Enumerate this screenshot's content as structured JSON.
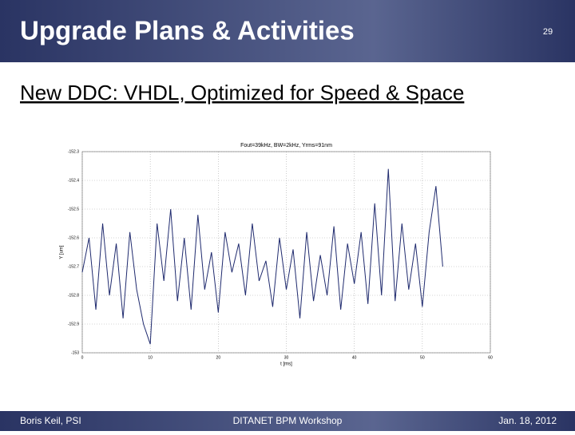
{
  "header": {
    "title": "Upgrade Plans & Activities",
    "page": "29"
  },
  "subtitle": "New DDC: VHDL, Optimized for Speed & Space",
  "chart_data": {
    "type": "line",
    "title": "Fout=39kHz, BW=2kHz, Yrms=91nm",
    "xlabel": "t [ms]",
    "ylabel": "Y [um]",
    "x": [
      0,
      1,
      2,
      3,
      4,
      5,
      6,
      7,
      8,
      9,
      10,
      11,
      12,
      13,
      14,
      15,
      16,
      17,
      18,
      19,
      20,
      21,
      22,
      23,
      24,
      25,
      26,
      27,
      28,
      29,
      30,
      31,
      32,
      33,
      34,
      35,
      36,
      37,
      38,
      39,
      40,
      41,
      42,
      43,
      44,
      45,
      46,
      47,
      48,
      49,
      50,
      51,
      52,
      53
    ],
    "series": [
      {
        "color": "#1f2a6e",
        "values": [
          -152.72,
          -152.6,
          -152.85,
          -152.55,
          -152.8,
          -152.62,
          -152.88,
          -152.58,
          -152.78,
          -152.9,
          -152.97,
          -152.55,
          -152.75,
          -152.5,
          -152.82,
          -152.6,
          -152.85,
          -152.52,
          -152.78,
          -152.65,
          -152.86,
          -152.58,
          -152.72,
          -152.62,
          -152.8,
          -152.55,
          -152.75,
          -152.68,
          -152.84,
          -152.6,
          -152.78,
          -152.64,
          -152.88,
          -152.58,
          -152.82,
          -152.66,
          -152.8,
          -152.56,
          -152.85,
          -152.62,
          -152.76,
          -152.58,
          -152.83,
          -152.48,
          -152.8,
          -152.36,
          -152.82,
          -152.55,
          -152.78,
          -152.62,
          -152.84,
          -152.58,
          -152.42,
          -152.7
        ]
      }
    ],
    "xlim": [
      0,
      60
    ],
    "ylim": [
      -153,
      -152.3
    ],
    "xticks": [
      0,
      10,
      20,
      30,
      40,
      50,
      60
    ],
    "yticks": [
      -152.3,
      -152.4,
      -152.5,
      -152.6,
      -152.7,
      -152.8,
      -152.9,
      -153
    ],
    "grid": true
  },
  "footer": {
    "left": "Boris Keil, PSI",
    "center": "DITANET BPM Workshop",
    "right": "Jan. 18, 2012"
  }
}
